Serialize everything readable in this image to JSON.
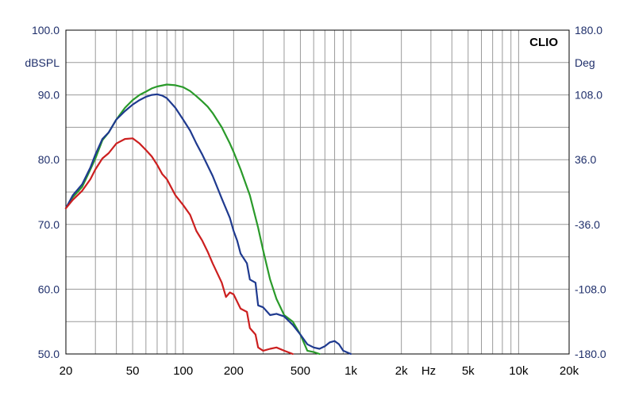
{
  "chart_data": {
    "type": "line",
    "brand": "CLIO",
    "xlabel": "Hz",
    "ylabel_left": "dBSPL",
    "ylabel_right": "Deg",
    "x_scale": "log",
    "xlim": [
      20,
      20000
    ],
    "ylim": [
      50,
      100
    ],
    "ylim_right": [
      -180,
      180
    ],
    "x_ticks": [
      {
        "value": 20,
        "label": "20"
      },
      {
        "value": 50,
        "label": "50"
      },
      {
        "value": 100,
        "label": "100"
      },
      {
        "value": 200,
        "label": "200"
      },
      {
        "value": 500,
        "label": "500"
      },
      {
        "value": 1000,
        "label": "1k"
      },
      {
        "value": 2000,
        "label": "2k"
      },
      {
        "value": 5000,
        "label": "5k"
      },
      {
        "value": 10000,
        "label": "10k"
      },
      {
        "value": 20000,
        "label": "20k"
      }
    ],
    "y_ticks_left": [
      "100.0",
      "90.0",
      "80.0",
      "70.0",
      "60.0",
      "50.0"
    ],
    "y_ticks_right": [
      "180.0",
      "108.0",
      "36.0",
      "-36.0",
      "-108.0",
      "-180.0"
    ],
    "grid": true,
    "series": [
      {
        "color": "#2a9a2a",
        "x": [
          20,
          22,
          25,
          28,
          30,
          33,
          36,
          40,
          45,
          50,
          55,
          60,
          65,
          70,
          80,
          90,
          100,
          110,
          120,
          130,
          140,
          150,
          170,
          190,
          200,
          220,
          250,
          280,
          300,
          330,
          360,
          400,
          450,
          500,
          550,
          600,
          650
        ],
        "y": [
          72.5,
          74.2,
          75.8,
          78.5,
          80.2,
          83.0,
          84.2,
          86.2,
          88.0,
          89.2,
          90.0,
          90.5,
          91.0,
          91.3,
          91.6,
          91.5,
          91.2,
          90.6,
          89.8,
          89.0,
          88.2,
          87.2,
          85.0,
          82.5,
          81.2,
          78.5,
          74.5,
          69.5,
          66.0,
          61.5,
          58.5,
          56.0,
          55.0,
          53.0,
          50.5,
          50.3,
          50.0
        ]
      },
      {
        "color": "#1f3a8f",
        "x": [
          20,
          22,
          25,
          28,
          30,
          33,
          36,
          40,
          45,
          50,
          55,
          60,
          65,
          70,
          75,
          80,
          90,
          100,
          110,
          120,
          130,
          150,
          170,
          190,
          200,
          210,
          220,
          240,
          250,
          270,
          280,
          300,
          330,
          360,
          400,
          450,
          500,
          550,
          600,
          650,
          700,
          750,
          800,
          850,
          900,
          1000
        ],
        "y": [
          72.5,
          74.5,
          76.2,
          78.8,
          80.8,
          83.2,
          84.2,
          86.2,
          87.5,
          88.5,
          89.2,
          89.7,
          90.0,
          90.1,
          89.9,
          89.5,
          88.0,
          86.2,
          84.5,
          82.5,
          80.8,
          77.5,
          74.0,
          71.0,
          69.0,
          67.5,
          65.5,
          64.0,
          61.5,
          61.0,
          57.5,
          57.2,
          56.0,
          56.2,
          55.8,
          54.5,
          53.0,
          51.5,
          51.0,
          50.8,
          51.2,
          51.8,
          52.0,
          51.5,
          50.5,
          50.0
        ]
      },
      {
        "color": "#cc1f1f",
        "x": [
          20,
          22,
          25,
          28,
          30,
          33,
          36,
          40,
          45,
          50,
          55,
          60,
          65,
          70,
          75,
          80,
          90,
          100,
          110,
          120,
          130,
          140,
          150,
          170,
          180,
          190,
          200,
          220,
          240,
          250,
          270,
          280,
          300,
          330,
          360,
          400,
          450
        ],
        "y": [
          72.5,
          73.8,
          75.2,
          77.0,
          78.5,
          80.2,
          81.0,
          82.5,
          83.2,
          83.3,
          82.5,
          81.5,
          80.5,
          79.2,
          77.8,
          77.0,
          74.5,
          73.0,
          71.5,
          69.0,
          67.5,
          65.8,
          64.0,
          61.0,
          58.8,
          59.5,
          59.2,
          57.0,
          56.5,
          54.0,
          53.0,
          51.0,
          50.5,
          50.8,
          51.0,
          50.5,
          50.0
        ]
      }
    ]
  }
}
